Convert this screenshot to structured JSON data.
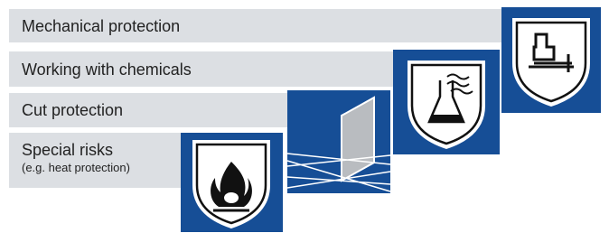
{
  "items": [
    {
      "label": "Mechanical protection"
    },
    {
      "label": "Working with chemicals"
    },
    {
      "label": "Cut protection"
    },
    {
      "label": "Special risks",
      "subtitle": "(e.g. heat protection)"
    }
  ]
}
